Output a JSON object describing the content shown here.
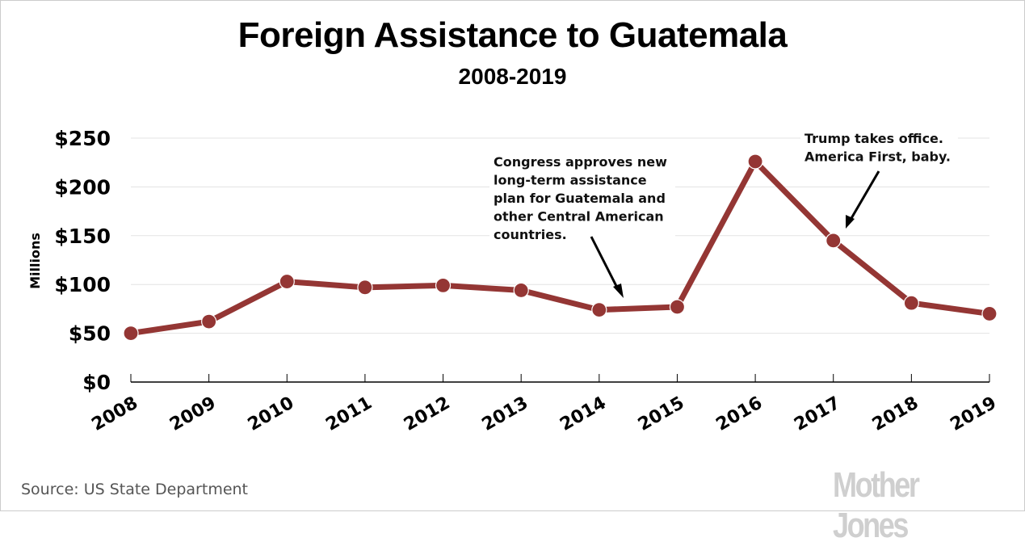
{
  "chart_data": {
    "type": "line",
    "title": "Foreign Assistance to Guatemala",
    "subtitle": "2008-2019",
    "xlabel": "",
    "ylabel": "Millions",
    "x": [
      "2008",
      "2009",
      "2010",
      "2011",
      "2012",
      "2013",
      "2014",
      "2015",
      "2016",
      "2017",
      "2018",
      "2019"
    ],
    "series": [
      {
        "name": "Foreign Assistance",
        "color": "#943634",
        "values": [
          50,
          62,
          103,
          97,
          99,
          94,
          74,
          77,
          226,
          145,
          81,
          70
        ]
      }
    ],
    "ylim": [
      0,
      250
    ],
    "yticks": [
      0,
      50,
      100,
      150,
      200,
      250
    ],
    "ytick_labels": [
      "$0",
      "$50",
      "$100",
      "$150",
      "$200",
      "$250"
    ],
    "grid": true,
    "annotations": [
      {
        "lines": [
          "Congress approves new",
          "long-term assistance",
          "plan for Guatemala and",
          "other Central American",
          "countries."
        ],
        "points_to_x": "2014"
      },
      {
        "lines": [
          "Trump takes office.",
          "America First, baby."
        ],
        "points_to_x": "2017"
      }
    ]
  },
  "footer": {
    "source": "Source: US State Department",
    "logo": "Mother Jones"
  }
}
